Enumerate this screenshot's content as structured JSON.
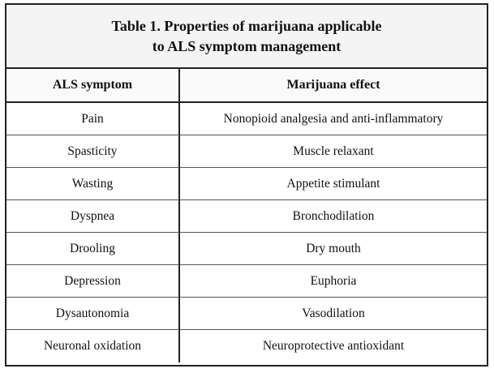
{
  "table": {
    "caption_line1": "Table 1. Properties of marijuana applicable",
    "caption_line2": "to ALS symptom management",
    "headers": [
      "ALS symptom",
      "Marijuana effect"
    ],
    "rows": [
      [
        "Pain",
        "Nonopioid analgesia and anti-inflammatory"
      ],
      [
        "Spasticity",
        "Muscle relaxant"
      ],
      [
        "Wasting",
        "Appetite stimulant"
      ],
      [
        "Dyspnea",
        "Bronchodilation"
      ],
      [
        "Drooling",
        "Dry mouth"
      ],
      [
        "Depression",
        "Euphoria"
      ],
      [
        "Dysautonomia",
        "Vasodilation"
      ],
      [
        "Neuronal oxidation",
        "Neuroprotective antioxidant"
      ]
    ]
  }
}
